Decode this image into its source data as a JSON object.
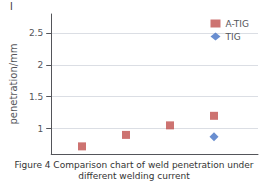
{
  "chart_data": {
    "type": "scatter",
    "title": "Figure 4 Comparison chart of weld penetration under\ndifferent welding current",
    "y_label": "penetration/mm",
    "annotation": "l ",
    "series": [
      {
        "name": "A-TIG",
        "color": "#c0504d",
        "marker": "square",
        "x": [
          1,
          2,
          3,
          4
        ],
        "values": [
          0.72,
          0.9,
          1.05,
          1.2
        ]
      },
      {
        "name": "TIG",
        "color": "#4472c4",
        "marker": "diamond",
        "x": [
          4
        ],
        "values": [
          0.87
        ]
      }
    ],
    "xlim": [
      0.3,
      5.0
    ],
    "ylim": [
      0.6,
      2.8
    ],
    "yticks": [
      1.0,
      1.5,
      2.0,
      2.5
    ],
    "tick_labels": "y",
    "grid": true,
    "legend": "upper right"
  }
}
